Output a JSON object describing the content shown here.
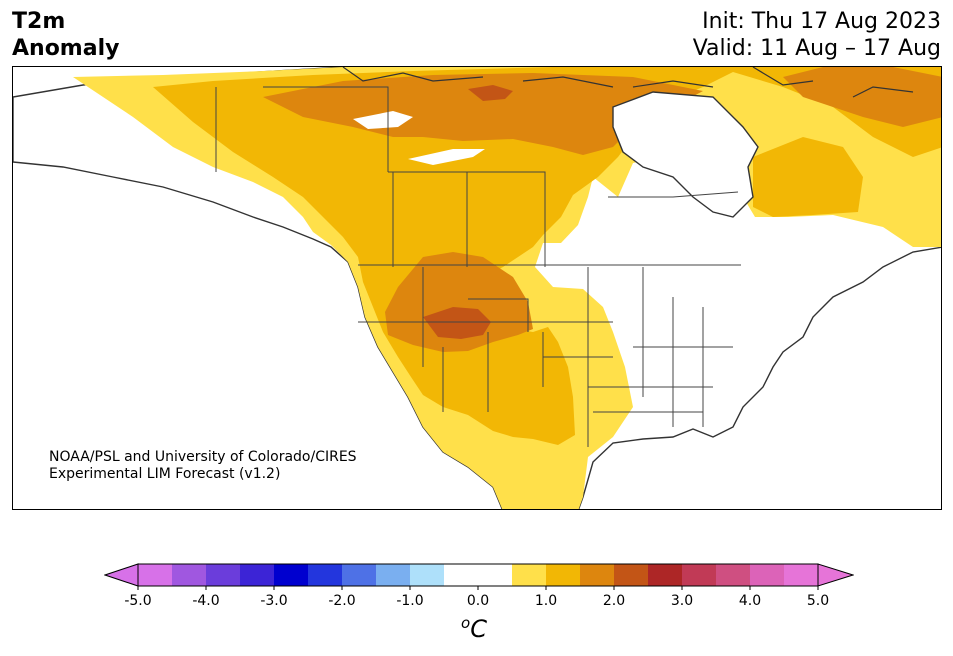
{
  "header": {
    "title_line1": "T2m",
    "title_line2": "Anomaly",
    "init": "Init: Thu 17 Aug 2023",
    "valid": "Valid: 11 Aug – 17 Aug"
  },
  "credit": {
    "line1": "NOAA/PSL and University of Colorado/CIRES",
    "line2": "Experimental LIM Forecast (v1.2)"
  },
  "colorbar": {
    "unit_sup": "o",
    "unit": "C",
    "ticks": [
      "-5.0",
      "-4.0",
      "-3.0",
      "-2.0",
      "-1.0",
      "0.0",
      "1.0",
      "2.0",
      "3.0",
      "4.0",
      "5.0"
    ],
    "colors": [
      "#d771e8",
      "#a057e0",
      "#6b3ddb",
      "#3c24d6",
      "#0000cf",
      "#2336dd",
      "#4e71e6",
      "#7aaff0",
      "#aee0fa",
      "#ffffff",
      "#ffffff",
      "#ffe04a",
      "#f2b705",
      "#dd860e",
      "#c35516",
      "#ad2626",
      "#c13a56",
      "#cf4f81",
      "#dc63b8",
      "#e674d8"
    ],
    "under_color": "#d771e8",
    "over_color": "#e674d8"
  },
  "map": {
    "region": "North America",
    "colors": {
      "anom_1": "#ffe04a",
      "anom_1_5": "#f2b705",
      "anom_2": "#dd860e",
      "anom_2_5": "#c35516",
      "coast": "#333333",
      "border": "#444444"
    }
  }
}
